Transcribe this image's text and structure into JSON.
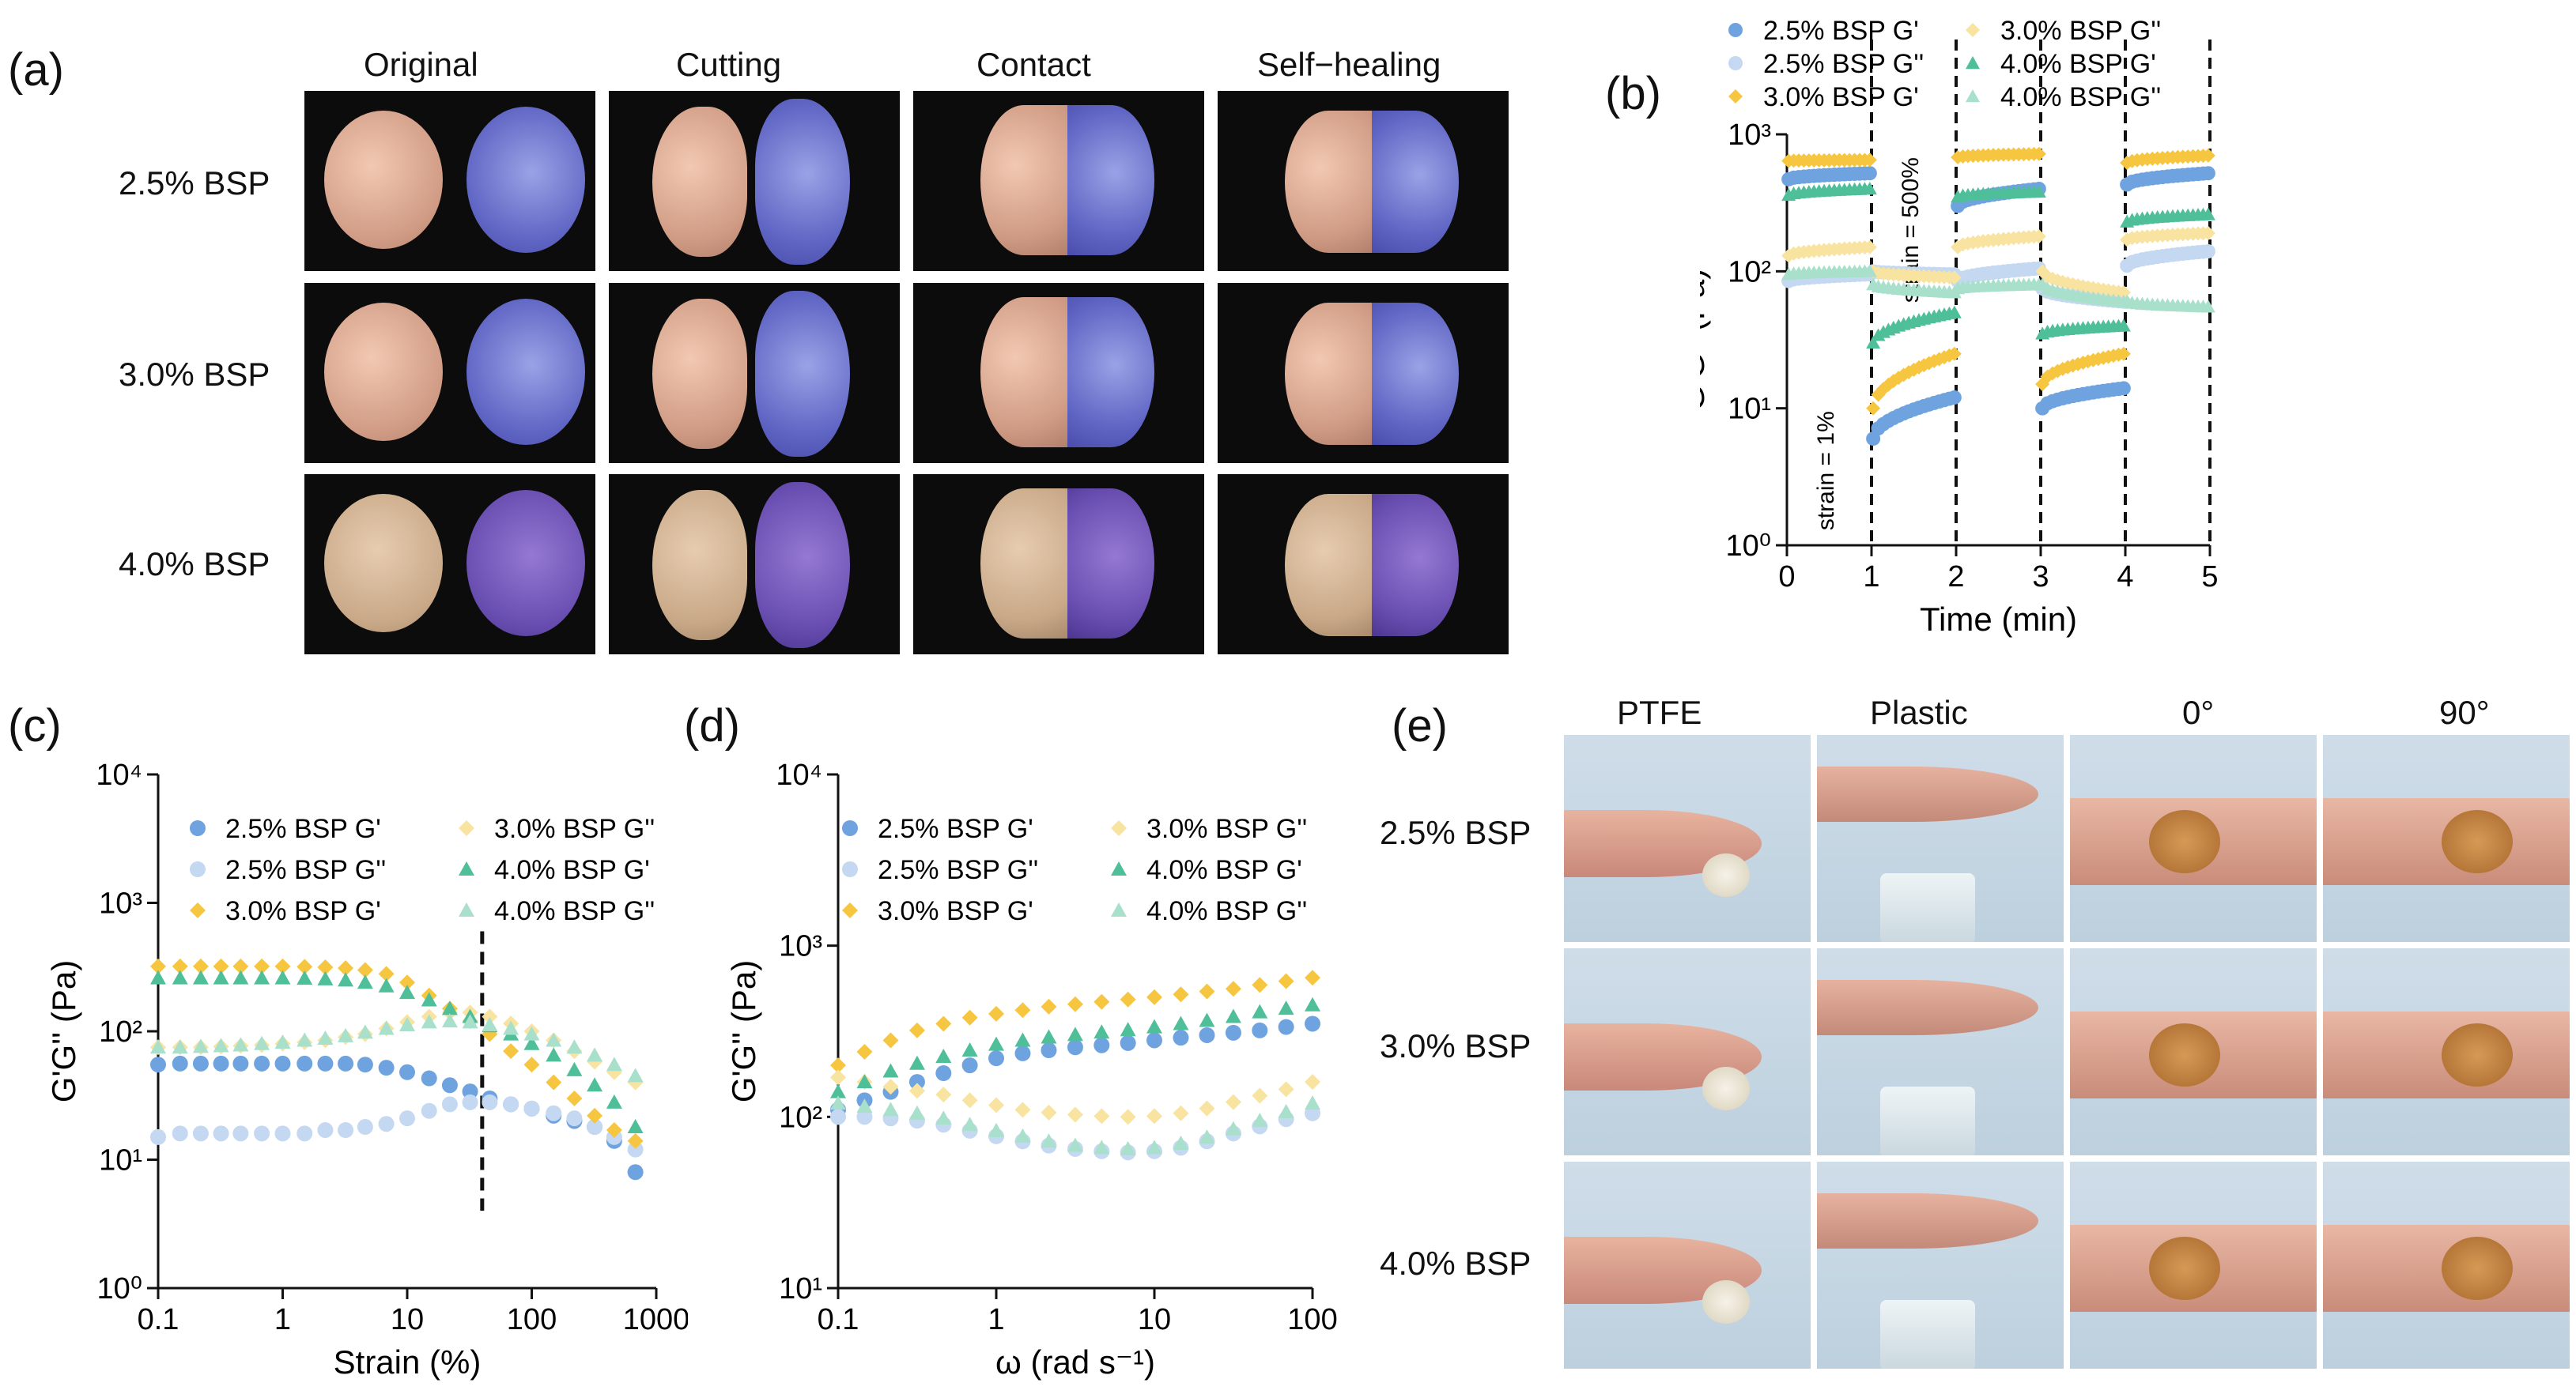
{
  "panels": {
    "a": "(a)",
    "b": "(b)",
    "c": "(c)",
    "d": "(d)",
    "e": "(e)"
  },
  "panel_a": {
    "columns": [
      "Original",
      "Cutting",
      "Contact",
      "Self−healing"
    ],
    "rows": [
      "2.5% BSP",
      "3.0% BSP",
      "4.0% BSP"
    ]
  },
  "panel_e": {
    "columns": [
      "PTFE",
      "Plastic",
      "0°",
      "90°"
    ],
    "rows": [
      "2.5% BSP",
      "3.0% BSP",
      "4.0% BSP"
    ]
  },
  "colors": {
    "bsp25_gp": "#6fa3e0",
    "bsp25_gpp": "#c4d8f2",
    "bsp30_gp": "#f7c640",
    "bsp30_gpp": "#f8e3a0",
    "bsp40_gp": "#4fbf9a",
    "bsp40_gpp": "#a9e0cb"
  },
  "legend_entries": [
    "2.5% BSP G'",
    "2.5% BSP G''",
    "3.0% BSP G'",
    "3.0% BSP G''",
    "4.0% BSP G'",
    "4.0% BSP G''"
  ],
  "chart_data": [
    {
      "id": "b",
      "type": "scatter",
      "title": "",
      "xlabel": "Time (min)",
      "ylabel": "G'G'' (Pa)",
      "xlim": [
        0,
        5
      ],
      "ylim": [
        1,
        1000
      ],
      "yscale": "log",
      "xticks": [
        "0",
        "1",
        "2",
        "3",
        "4",
        "5"
      ],
      "yticks": [
        "10⁰",
        "10¹",
        "10²",
        "10³"
      ],
      "annotations": [
        "strain = 1%",
        "strain = 500%"
      ],
      "vlines": [
        1,
        2,
        3,
        4,
        5
      ],
      "series": [
        {
          "name": "2.5% BSP G'",
          "segments": [
            {
              "x": [
                0,
                1
              ],
              "y": [
                470,
                520
              ]
            },
            {
              "x": [
                1,
                2
              ],
              "y": [
                6,
                12
              ]
            },
            {
              "x": [
                2,
                3
              ],
              "y": [
                300,
                400
              ]
            },
            {
              "x": [
                3,
                4
              ],
              "y": [
                10,
                14
              ]
            },
            {
              "x": [
                4,
                5
              ],
              "y": [
                430,
                520
              ]
            }
          ]
        },
        {
          "name": "2.5% BSP G''",
          "segments": [
            {
              "x": [
                0,
                1
              ],
              "y": [
                85,
                95
              ]
            },
            {
              "x": [
                1,
                2
              ],
              "y": [
                100,
                95
              ]
            },
            {
              "x": [
                2,
                3
              ],
              "y": [
                85,
                105
              ]
            },
            {
              "x": [
                3,
                4
              ],
              "y": [
                75,
                60
              ]
            },
            {
              "x": [
                4,
                5
              ],
              "y": [
                110,
                140
              ]
            }
          ]
        },
        {
          "name": "3.0% BSP G'",
          "segments": [
            {
              "x": [
                0,
                1
              ],
              "y": [
                640,
                650
              ]
            },
            {
              "x": [
                1,
                2
              ],
              "y": [
                10,
                25
              ]
            },
            {
              "x": [
                2,
                3
              ],
              "y": [
                680,
                720
              ]
            },
            {
              "x": [
                3,
                4
              ],
              "y": [
                15,
                25
              ]
            },
            {
              "x": [
                4,
                5
              ],
              "y": [
                620,
                700
              ]
            }
          ]
        },
        {
          "name": "3.0% BSP G''",
          "segments": [
            {
              "x": [
                0,
                1
              ],
              "y": [
                130,
                150
              ]
            },
            {
              "x": [
                1,
                2
              ],
              "y": [
                100,
                90
              ]
            },
            {
              "x": [
                2,
                3
              ],
              "y": [
                150,
                180
              ]
            },
            {
              "x": [
                3,
                4
              ],
              "y": [
                100,
                70
              ]
            },
            {
              "x": [
                4,
                5
              ],
              "y": [
                170,
                190
              ]
            }
          ]
        },
        {
          "name": "4.0% BSP G'",
          "segments": [
            {
              "x": [
                0,
                1
              ],
              "y": [
                360,
                400
              ]
            },
            {
              "x": [
                1,
                2
              ],
              "y": [
                30,
                50
              ]
            },
            {
              "x": [
                2,
                3
              ],
              "y": [
                350,
                380
              ]
            },
            {
              "x": [
                3,
                4
              ],
              "y": [
                35,
                40
              ]
            },
            {
              "x": [
                4,
                5
              ],
              "y": [
                230,
                260
              ]
            }
          ]
        },
        {
          "name": "4.0% BSP G''",
          "segments": [
            {
              "x": [
                0,
                1
              ],
              "y": [
                95,
                100
              ]
            },
            {
              "x": [
                1,
                2
              ],
              "y": [
                80,
                70
              ]
            },
            {
              "x": [
                2,
                3
              ],
              "y": [
                75,
                80
              ]
            },
            {
              "x": [
                3,
                4
              ],
              "y": [
                80,
                60
              ]
            },
            {
              "x": [
                4,
                5
              ],
              "y": [
                60,
                55
              ]
            }
          ]
        }
      ]
    },
    {
      "id": "c",
      "type": "scatter",
      "title": "",
      "xlabel": "Strain (%)",
      "ylabel": "G'G'' (Pa)",
      "xlim": [
        0.1,
        1000
      ],
      "ylim": [
        1,
        10000
      ],
      "xscale": "log",
      "yscale": "log",
      "xticks": [
        "0.1",
        "1",
        "10",
        "100",
        "1000"
      ],
      "yticks": [
        "10⁰",
        "10¹",
        "10²",
        "10³",
        "10⁴"
      ],
      "vline": 40,
      "x": [
        0.1,
        0.15,
        0.22,
        0.32,
        0.46,
        0.68,
        1,
        1.5,
        2.2,
        3.2,
        4.6,
        6.8,
        10,
        15,
        22,
        32,
        46,
        68,
        100,
        150,
        220,
        320,
        460,
        680
      ],
      "series": [
        {
          "name": "2.5% BSP G'",
          "values": [
            55,
            56,
            56,
            56,
            56,
            56,
            56,
            56,
            56,
            56,
            55,
            52,
            48,
            43,
            38,
            34,
            30,
            27,
            25,
            22,
            20,
            18,
            14,
            8
          ]
        },
        {
          "name": "2.5% BSP G''",
          "values": [
            15,
            16,
            16,
            16,
            16,
            16,
            16,
            16,
            17,
            17,
            18,
            19,
            21,
            24,
            27,
            28,
            28,
            27,
            25,
            23,
            21,
            18,
            15,
            12
          ]
        },
        {
          "name": "3.0% BSP G'",
          "values": [
            320,
            320,
            320,
            320,
            320,
            320,
            320,
            318,
            315,
            310,
            300,
            280,
            240,
            190,
            150,
            120,
            95,
            70,
            55,
            40,
            30,
            22,
            17,
            14
          ]
        },
        {
          "name": "3.0% BSP G''",
          "values": [
            75,
            75,
            75,
            76,
            77,
            78,
            80,
            82,
            85,
            90,
            95,
            105,
            118,
            130,
            140,
            140,
            130,
            115,
            100,
            85,
            70,
            58,
            48,
            40
          ]
        },
        {
          "name": "4.0% BSP G'",
          "values": [
            260,
            260,
            260,
            260,
            260,
            260,
            260,
            258,
            255,
            250,
            240,
            225,
            200,
            175,
            150,
            130,
            110,
            95,
            80,
            65,
            50,
            38,
            28,
            18
          ]
        },
        {
          "name": "4.0% BSP G''",
          "values": [
            75,
            75,
            76,
            77,
            78,
            80,
            82,
            85,
            88,
            92,
            98,
            105,
            112,
            118,
            120,
            118,
            112,
            105,
            95,
            85,
            75,
            65,
            55,
            45
          ]
        }
      ]
    },
    {
      "id": "d",
      "type": "scatter",
      "title": "",
      "xlabel": "ω (rad s⁻¹)",
      "ylabel": "G'G'' (Pa)",
      "xlim": [
        0.1,
        100
      ],
      "ylim": [
        10,
        10000
      ],
      "xscale": "log",
      "yscale": "log",
      "xticks": [
        "0.1",
        "1",
        "10",
        "100"
      ],
      "yticks": [
        "10¹",
        "10²",
        "10³",
        "10⁴"
      ],
      "x": [
        0.1,
        0.147,
        0.215,
        0.316,
        0.464,
        0.681,
        1,
        1.47,
        2.15,
        3.16,
        4.64,
        6.81,
        10,
        14.7,
        21.5,
        31.6,
        46.4,
        68.1,
        100
      ],
      "series": [
        {
          "name": "2.5% BSP G'",
          "values": [
            110,
            125,
            140,
            160,
            180,
            200,
            220,
            235,
            245,
            255,
            262,
            270,
            280,
            290,
            300,
            310,
            320,
            335,
            350
          ]
        },
        {
          "name": "2.5% BSP G''",
          "values": [
            100,
            100,
            98,
            95,
            90,
            83,
            77,
            72,
            68,
            65,
            63,
            62,
            63,
            66,
            72,
            80,
            88,
            97,
            105
          ]
        },
        {
          "name": "3.0% BSP G'",
          "values": [
            200,
            240,
            280,
            320,
            350,
            380,
            400,
            420,
            440,
            455,
            470,
            485,
            500,
            520,
            540,
            560,
            590,
            620,
            650
          ]
        },
        {
          "name": "3.0% BSP G''",
          "values": [
            170,
            160,
            150,
            142,
            135,
            125,
            117,
            110,
            106,
            103,
            101,
            100,
            101,
            105,
            112,
            122,
            133,
            145,
            160
          ]
        },
        {
          "name": "4.0% BSP G'",
          "values": [
            140,
            160,
            185,
            205,
            225,
            245,
            265,
            280,
            292,
            302,
            312,
            322,
            335,
            350,
            365,
            385,
            410,
            430,
            450
          ]
        },
        {
          "name": "4.0% BSP G''",
          "values": [
            120,
            115,
            110,
            105,
            98,
            90,
            83,
            77,
            72,
            68,
            66,
            65,
            66,
            70,
            76,
            85,
            95,
            107,
            120
          ]
        }
      ]
    }
  ]
}
